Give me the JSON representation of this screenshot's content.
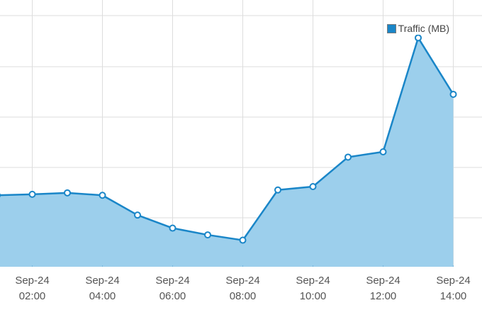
{
  "chart_data": {
    "type": "area",
    "legend": {
      "entries": [
        "Traffic (MB)"
      ],
      "placement": "top-right"
    },
    "x_ticks": [
      {
        "line1": "Sep-24",
        "line2": "02:00"
      },
      {
        "line1": "Sep-24",
        "line2": "04:00"
      },
      {
        "line1": "Sep-24",
        "line2": "06:00"
      },
      {
        "line1": "Sep-24",
        "line2": "08:00"
      },
      {
        "line1": "Sep-24",
        "line2": "10:00"
      },
      {
        "line1": "Sep-24",
        "line2": "12:00"
      },
      {
        "line1": "Sep-24",
        "line2": "14:00"
      }
    ],
    "series": [
      {
        "name": "Traffic (MB)",
        "x": [
          "Sep-24 01:00",
          "Sep-24 02:00",
          "Sep-24 03:00",
          "Sep-24 04:00",
          "Sep-24 05:00",
          "Sep-24 06:00",
          "Sep-24 07:00",
          "Sep-24 08:00",
          "Sep-24 09:00",
          "Sep-24 10:00",
          "Sep-24 11:00",
          "Sep-24 12:00",
          "Sep-24 13:00",
          "Sep-24 14:00"
        ],
        "values": [
          1.48,
          1.5,
          1.53,
          1.48,
          1.07,
          0.8,
          0.66,
          0.55,
          1.59,
          1.66,
          2.27,
          2.38,
          4.74,
          3.57
        ]
      }
    ],
    "ylim": [
      0,
      5.2
    ],
    "grid": true,
    "colors": {
      "line": "#1a86c8",
      "fill": "#9ccfec",
      "grid": "#dddddd",
      "point_fill": "#ffffff"
    }
  }
}
